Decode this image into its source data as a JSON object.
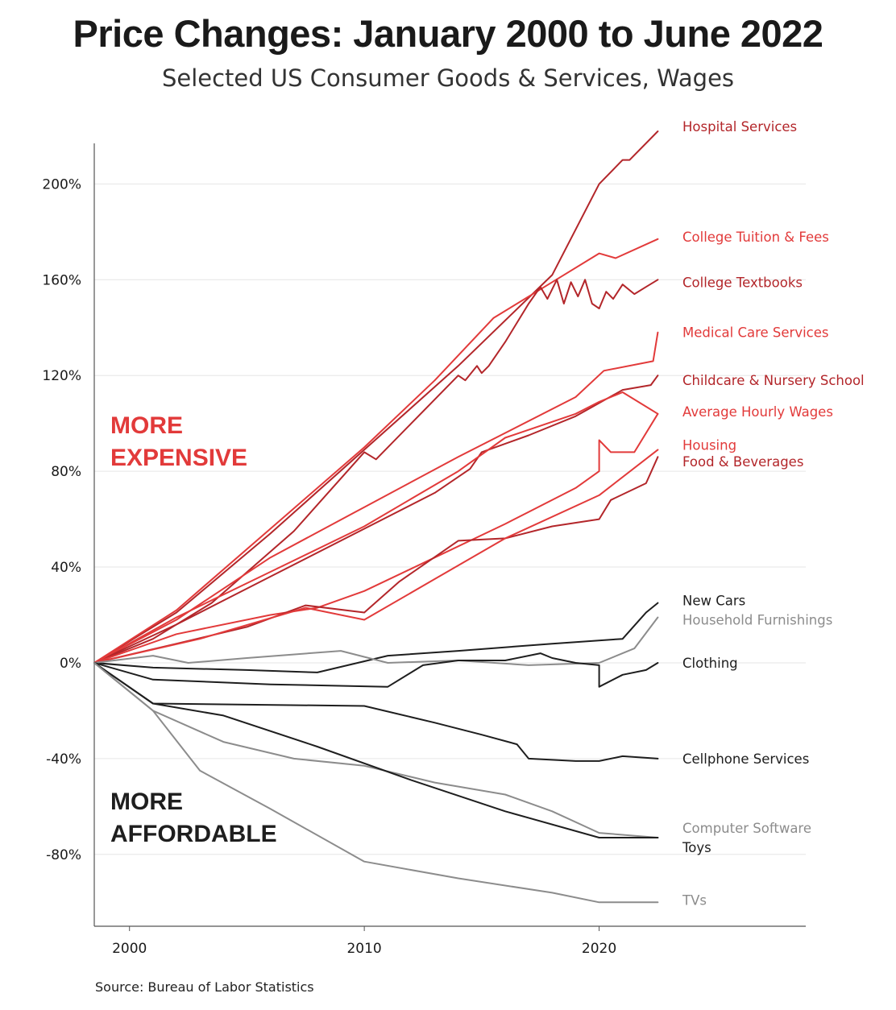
{
  "title": "Price Changes: January 2000 to June 2022",
  "subtitle": "Selected US Consumer Goods & Services, Wages",
  "source": "Source: Bureau of Labor Statistics",
  "colors": {
    "red_dark": "#b3262a",
    "red": "#e23a3a",
    "black": "#1e1e1e",
    "gray": "#8c8c8c",
    "grid": "#e6e6e6",
    "axis": "#555555"
  },
  "chart_data": {
    "type": "line",
    "xlabel": "",
    "ylabel": "",
    "xlim": [
      1998.5,
      2028.8
    ],
    "ylim": [
      -110,
      223
    ],
    "x_ticks": [
      2000,
      2010,
      2020
    ],
    "x_tick_labels": [
      "2000",
      "2010",
      "2020"
    ],
    "y_ticks": [
      200,
      160,
      120,
      80,
      40,
      0,
      -40,
      -80
    ],
    "y_tick_labels": [
      "200%",
      "160%",
      "120%",
      "80%",
      "40%",
      "0%",
      "-40%",
      "-80%"
    ],
    "grid": "horizontal",
    "annotations": [
      {
        "lines": [
          "MORE",
          "EXPENSIVE"
        ],
        "color": "#e23a3a"
      },
      {
        "lines": [
          "MORE",
          "AFFORDABLE"
        ],
        "color": "#1e1e1e"
      }
    ],
    "series": [
      {
        "name": "Hospital Services",
        "color": "#b3262a",
        "x": [
          1998.5,
          2002,
          2006,
          2010,
          2014,
          2018,
          2020,
          2021,
          2021.3,
          2022.5
        ],
        "y": [
          0,
          21,
          54,
          89,
          124,
          162,
          200,
          210,
          210,
          222
        ]
      },
      {
        "name": "College Tuition & Fees",
        "color": "#e23a3a",
        "x": [
          1998.5,
          2002,
          2006,
          2010,
          2013,
          2015.5,
          2018,
          2020,
          2020.7,
          2022.5
        ],
        "y": [
          0,
          22,
          56,
          90,
          118,
          144,
          159,
          171,
          169,
          177
        ]
      },
      {
        "name": "College Textbooks",
        "color": "#b3262a",
        "x": [
          1998.5,
          2001,
          2003.5,
          2007,
          2010,
          2010.5,
          2012,
          2014,
          2014.3,
          2014.8,
          2015,
          2015.3,
          2016,
          2017,
          2017.5,
          2017.8,
          2018.2,
          2018.5,
          2018.8,
          2019.1,
          2019.4,
          2019.7,
          2020,
          2020.3,
          2020.6,
          2021,
          2021.5,
          2022,
          2022.5
        ],
        "y": [
          0,
          10,
          25,
          55,
          88,
          85,
          100,
          120,
          118,
          124,
          121,
          124,
          134,
          150,
          157,
          152,
          160,
          150,
          159,
          153,
          160,
          150,
          148,
          155,
          152,
          158,
          154,
          157,
          160
        ]
      },
      {
        "name": "Medical Care Services",
        "color": "#e23a3a",
        "x": [
          1998.5,
          2002,
          2006,
          2010,
          2014,
          2019,
          2020.2,
          2022.3,
          2022.5
        ],
        "y": [
          0,
          18,
          44,
          65,
          86,
          111,
          122,
          126,
          138
        ]
      },
      {
        "name": "Childcare & Nursery School",
        "color": "#b3262a",
        "x": [
          1998.5,
          2002,
          2006,
          2010,
          2013,
          2014.5,
          2015,
          2017,
          2019,
          2021,
          2022.2,
          2022.5
        ],
        "y": [
          0,
          16,
          36,
          56,
          71,
          81,
          88,
          95,
          103,
          114,
          116,
          120
        ]
      },
      {
        "name": "Average Hourly Wages",
        "color": "#e23a3a",
        "x": [
          1998.5,
          2002,
          2006,
          2010,
          2014,
          2016,
          2019,
          2020,
          2021,
          2022.5
        ],
        "y": [
          0,
          19,
          38,
          57,
          80,
          94,
          104,
          109,
          113,
          104
        ]
      },
      {
        "name": "Housing",
        "color": "#e23a3a",
        "x": [
          1998.5,
          2002,
          2006,
          2008,
          2010,
          2013,
          2016,
          2019,
          2020,
          2020,
          2020.5,
          2021.5,
          2022.5
        ],
        "y": [
          0,
          12,
          20,
          23,
          30,
          44,
          58,
          73,
          80,
          93,
          88,
          88,
          104
        ]
      },
      {
        "name": "Food & Beverages",
        "color": "#b3262a",
        "x": [
          1998.5,
          2002,
          2005,
          2007.5,
          2010,
          2011.5,
          2014,
          2016,
          2018,
          2020,
          2020.5,
          2022,
          2022.5
        ],
        "y": [
          0,
          8,
          15,
          24,
          21,
          34,
          51,
          52,
          57,
          60,
          68,
          75,
          86
        ]
      },
      {
        "name": "Housing",
        "color": "#e23a3a",
        "x": [
          1998.5,
          2003,
          2007.5,
          2010,
          2013,
          2016,
          2020,
          2022.5
        ],
        "y": [
          0,
          10,
          23,
          18,
          35,
          52,
          70,
          89
        ]
      },
      {
        "name": "New Cars",
        "color": "#1e1e1e",
        "x": [
          1998.5,
          2001,
          2005,
          2008,
          2011,
          2014,
          2018,
          2021,
          2022,
          2022.5
        ],
        "y": [
          0,
          -2,
          -3,
          -4,
          3,
          5,
          8,
          10,
          21,
          25
        ]
      },
      {
        "name": "Household Furnishings",
        "color": "#8c8c8c",
        "x": [
          1998.5,
          2001,
          2002.5,
          2005,
          2009,
          2011,
          2014,
          2017,
          2020,
          2021.5,
          2022.5
        ],
        "y": [
          0,
          3,
          0,
          2,
          5,
          0,
          1,
          -1,
          0,
          6,
          19
        ]
      },
      {
        "name": "Clothing",
        "color": "#1e1e1e",
        "x": [
          1998.5,
          2001,
          2006,
          2011,
          2012.5,
          2014,
          2016,
          2017.5,
          2018,
          2019,
          2020,
          2020,
          2021,
          2022,
          2022.5
        ],
        "y": [
          0,
          -7,
          -9,
          -10,
          -1,
          1,
          1,
          4,
          2,
          0,
          -1,
          -10,
          -5,
          -3,
          0
        ]
      },
      {
        "name": "Cellphone Services",
        "color": "#1e1e1e",
        "x": [
          1998.5,
          2001,
          2010,
          2013,
          2015,
          2016.5,
          2017,
          2019,
          2020,
          2021,
          2022.5
        ],
        "y": [
          0,
          -17,
          -18,
          -25,
          -30,
          -34,
          -40,
          -41,
          -41,
          -39,
          -40
        ]
      },
      {
        "name": "Computer Software",
        "color": "#8c8c8c",
        "x": [
          1998.5,
          2001,
          2004,
          2007,
          2010,
          2013,
          2016,
          2018,
          2020,
          2022.5
        ],
        "y": [
          0,
          -20,
          -33,
          -40,
          -43,
          -50,
          -55,
          -62,
          -71,
          -73
        ]
      },
      {
        "name": "Toys",
        "color": "#1e1e1e",
        "x": [
          1998.5,
          2001,
          2004,
          2008,
          2012,
          2016,
          2020,
          2022.5
        ],
        "y": [
          0,
          -17,
          -22,
          -35,
          -49,
          -62,
          -73,
          -73
        ]
      },
      {
        "name": "TVs",
        "color": "#8c8c8c",
        "x": [
          1998.5,
          2001,
          2003,
          2006,
          2010,
          2014,
          2018,
          2020,
          2022.5
        ],
        "y": [
          0,
          -20,
          -45,
          -61,
          -83,
          -90,
          -96,
          -100,
          -100
        ]
      }
    ],
    "labels": [
      {
        "text": "Hospital Services",
        "color": "#b3262a",
        "y": 224
      },
      {
        "text": "College Tuition & Fees",
        "color": "#e23a3a",
        "y": 178
      },
      {
        "text": "College Textbooks",
        "color": "#b3262a",
        "y": 159
      },
      {
        "text": "Medical Care Services",
        "color": "#e23a3a",
        "y": 138
      },
      {
        "text": "Childcare & Nursery School",
        "color": "#b3262a",
        "y": 118
      },
      {
        "text": "Average Hourly Wages",
        "color": "#e23a3a",
        "y": 105
      },
      {
        "text": "Housing",
        "color": "#e23a3a",
        "y": 91
      },
      {
        "text": "Food & Beverages",
        "color": "#b3262a",
        "y": 84
      },
      {
        "text": "New Cars",
        "color": "#1e1e1e",
        "y": 26
      },
      {
        "text": "Household Furnishings",
        "color": "#8c8c8c",
        "y": 18
      },
      {
        "text": "Clothing",
        "color": "#1e1e1e",
        "y": 0
      },
      {
        "text": "Cellphone Services",
        "color": "#1e1e1e",
        "y": -40
      },
      {
        "text": "Computer Software",
        "color": "#8c8c8c",
        "y": -69
      },
      {
        "text": "Toys",
        "color": "#1e1e1e",
        "y": -77
      },
      {
        "text": "TVs",
        "color": "#8c8c8c",
        "y": -99
      }
    ]
  }
}
